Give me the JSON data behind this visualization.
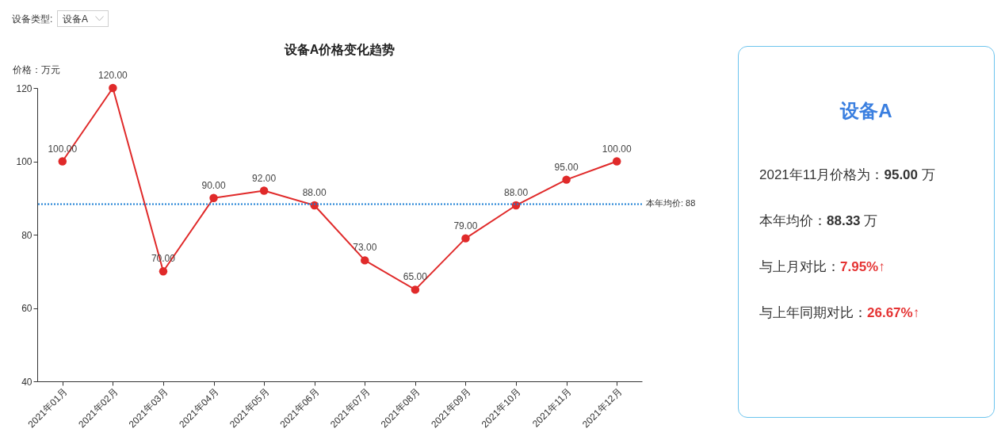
{
  "chart_data": [
    {
      "type": "line",
      "title": "设备A价格变化趋势",
      "ylabel": "价格：万元",
      "categories": [
        "2021年01月",
        "2021年02月",
        "2021年03月",
        "2021年04月",
        "2021年05月",
        "2021年06月",
        "2021年07月",
        "2021年08月",
        "2021年09月",
        "2021年10月",
        "2021年11月",
        "2021年12月"
      ],
      "values": [
        100,
        120,
        70,
        90,
        92,
        88,
        73,
        65,
        79,
        88,
        95,
        100
      ],
      "value_labels": [
        "100.00",
        "120.00",
        "70.00",
        "90.00",
        "92.00",
        "88.00",
        "73.00",
        "65.00",
        "79.00",
        "88.00",
        "95.00",
        "100.00"
      ],
      "color": "#e02a2a",
      "marker": "circle",
      "ylim": [
        40,
        120
      ],
      "yticks": [
        40,
        60,
        80,
        100,
        120
      ],
      "ref_lines": [
        {
          "axis": "y",
          "value": 88.33,
          "label": "本年均价: 88",
          "color": "#1a7fd4",
          "line_style": "dotted"
        }
      ],
      "annotations": [
        "设备类型:",
        "设备A"
      ]
    },
    {
      "type": "other",
      "title": "设备A",
      "annotations": [
        "2021年11月价格为：95.00 万",
        "本年均价：88.33 万",
        "与上月对比：7.95%↑",
        "与上年同期对比：26.67%↑"
      ],
      "colors": [
        "#333333",
        "#333333",
        "#e53333",
        "#e53333"
      ]
    }
  ]
}
